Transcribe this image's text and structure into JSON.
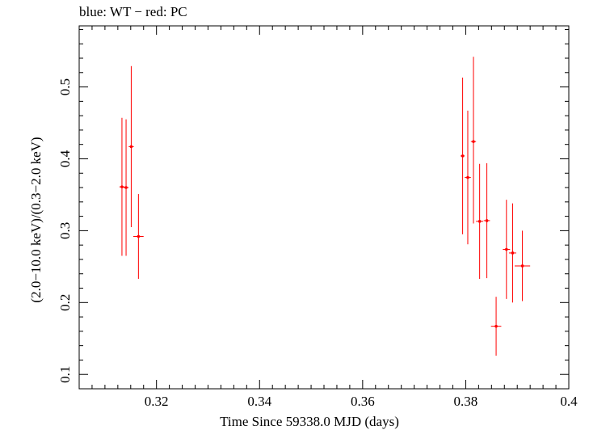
{
  "chart_data": {
    "type": "scatter",
    "title": "blue: WT − red: PC",
    "xlabel": "Time Since 59338.0 MJD (days)",
    "ylabel": "(2.0−10.0 keV)/(0.3−2.0 keV)",
    "xlim": [
      0.305,
      0.4
    ],
    "ylim": [
      0.08,
      0.585
    ],
    "x_ticks": [
      0.32,
      0.34,
      0.36,
      0.38,
      0.4
    ],
    "x_tick_labels": [
      "0.32",
      "0.34",
      "0.36",
      "0.38",
      "0.4"
    ],
    "y_ticks": [
      0.1,
      0.2,
      0.3,
      0.4,
      0.5
    ],
    "y_tick_labels": [
      "0.1",
      "0.2",
      "0.3",
      "0.4",
      "0.5"
    ],
    "grid": false,
    "series": [
      {
        "color": "#ff0000",
        "points": [
          {
            "x": 0.3133,
            "xerr": 0.0005,
            "y": 0.361,
            "yerr_low": 0.096,
            "yerr_high": 0.096
          },
          {
            "x": 0.3141,
            "xerr": 0.0005,
            "y": 0.36,
            "yerr_low": 0.095,
            "yerr_high": 0.095
          },
          {
            "x": 0.3151,
            "xerr": 0.0005,
            "y": 0.417,
            "yerr_low": 0.112,
            "yerr_high": 0.112
          },
          {
            "x": 0.3165,
            "xerr": 0.001,
            "y": 0.292,
            "yerr_low": 0.059,
            "yerr_high": 0.059
          },
          {
            "x": 0.3794,
            "xerr": 0.0004,
            "y": 0.404,
            "yerr_low": 0.109,
            "yerr_high": 0.109
          },
          {
            "x": 0.3804,
            "xerr": 0.0006,
            "y": 0.374,
            "yerr_low": 0.093,
            "yerr_high": 0.093
          },
          {
            "x": 0.3815,
            "xerr": 0.0005,
            "y": 0.424,
            "yerr_low": 0.114,
            "yerr_high": 0.118
          },
          {
            "x": 0.3827,
            "xerr": 0.0007,
            "y": 0.313,
            "yerr_low": 0.08,
            "yerr_high": 0.08
          },
          {
            "x": 0.3841,
            "xerr": 0.0006,
            "y": 0.314,
            "yerr_low": 0.08,
            "yerr_high": 0.08
          },
          {
            "x": 0.3859,
            "xerr": 0.001,
            "y": 0.167,
            "yerr_low": 0.041,
            "yerr_high": 0.041
          },
          {
            "x": 0.3879,
            "xerr": 0.0007,
            "y": 0.274,
            "yerr_low": 0.069,
            "yerr_high": 0.069
          },
          {
            "x": 0.3891,
            "xerr": 0.0007,
            "y": 0.269,
            "yerr_low": 0.069,
            "yerr_high": 0.069
          },
          {
            "x": 0.391,
            "xerr": 0.0015,
            "y": 0.251,
            "yerr_low": 0.049,
            "yerr_high": 0.049
          }
        ]
      }
    ]
  }
}
